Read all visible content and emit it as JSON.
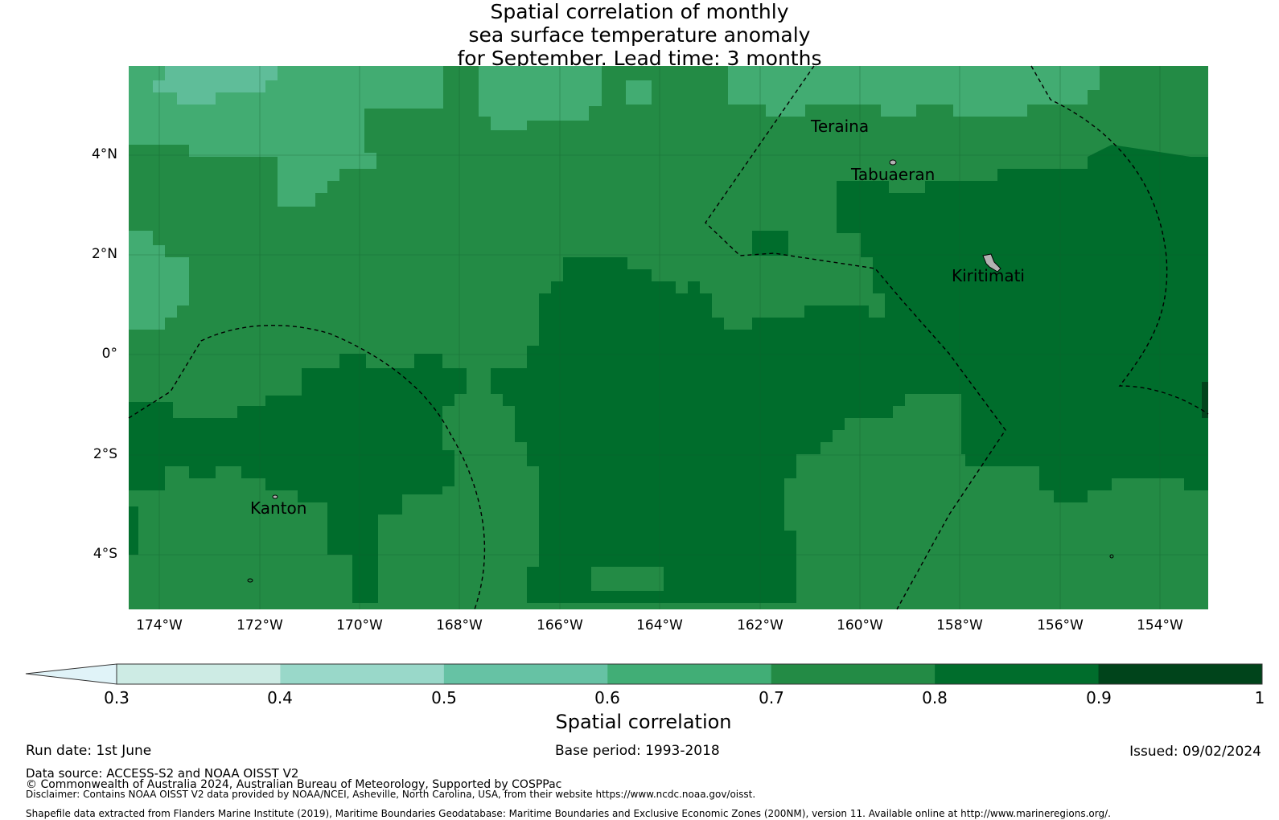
{
  "title": {
    "line1": "Spatial correlation of monthly",
    "line2": "sea surface temperature anomaly",
    "line3": "for September. Lead time: 3 months"
  },
  "map": {
    "lat_labels": [
      "4°N",
      "2°N",
      "0°",
      "2°S",
      "4°S"
    ],
    "lon_labels": [
      "174°W",
      "172°W",
      "170°W",
      "168°W",
      "166°W",
      "164°W",
      "162°W",
      "160°W",
      "158°W",
      "156°W",
      "154°W"
    ],
    "places": [
      "Teraina",
      "Tabuaeran",
      "Kiritimati",
      "Kanton"
    ],
    "colors": {
      "c05": "#5fbd99",
      "c06": "#42ac72",
      "c07": "#238b45",
      "c08": "#006d2c",
      "c09": "#00441b"
    }
  },
  "colorbar": {
    "ticks": [
      "0.3",
      "0.4",
      "0.5",
      "0.6",
      "0.7",
      "0.8",
      "0.9",
      "1"
    ],
    "colors": [
      "#e0f3f8",
      "#cdebe4",
      "#99d8c9",
      "#66c2a4",
      "#41ae76",
      "#238b45",
      "#006d2c",
      "#00441b"
    ],
    "label": "Spatial correlation"
  },
  "footer": {
    "run_date": "Run date: 1st June",
    "base_period": "Base period: 1993-2018",
    "issued": "Issued: 09/02/2024",
    "data_source": "Data source: ACCESS-S2 and NOAA OISST V2",
    "copyright": "© Commonwealth of Australia 2024, Australian Bureau of Meteorology, Supported by COSPPac",
    "disclaimer": "Disclaimer: Contains NOAA OISST V2 data provided by NOAA/NCEI, Asheville, North Carolina, USA, from their website https://www.ncdc.noaa.gov/oisst.",
    "shapefile": "Shapefile data extracted from Flanders Marine Institute (2019), Maritime Boundaries Geodatabase: Maritime Boundaries and Exclusive Economic Zones (200NM), version 11. Available online at http://www.marineregions.org/."
  }
}
